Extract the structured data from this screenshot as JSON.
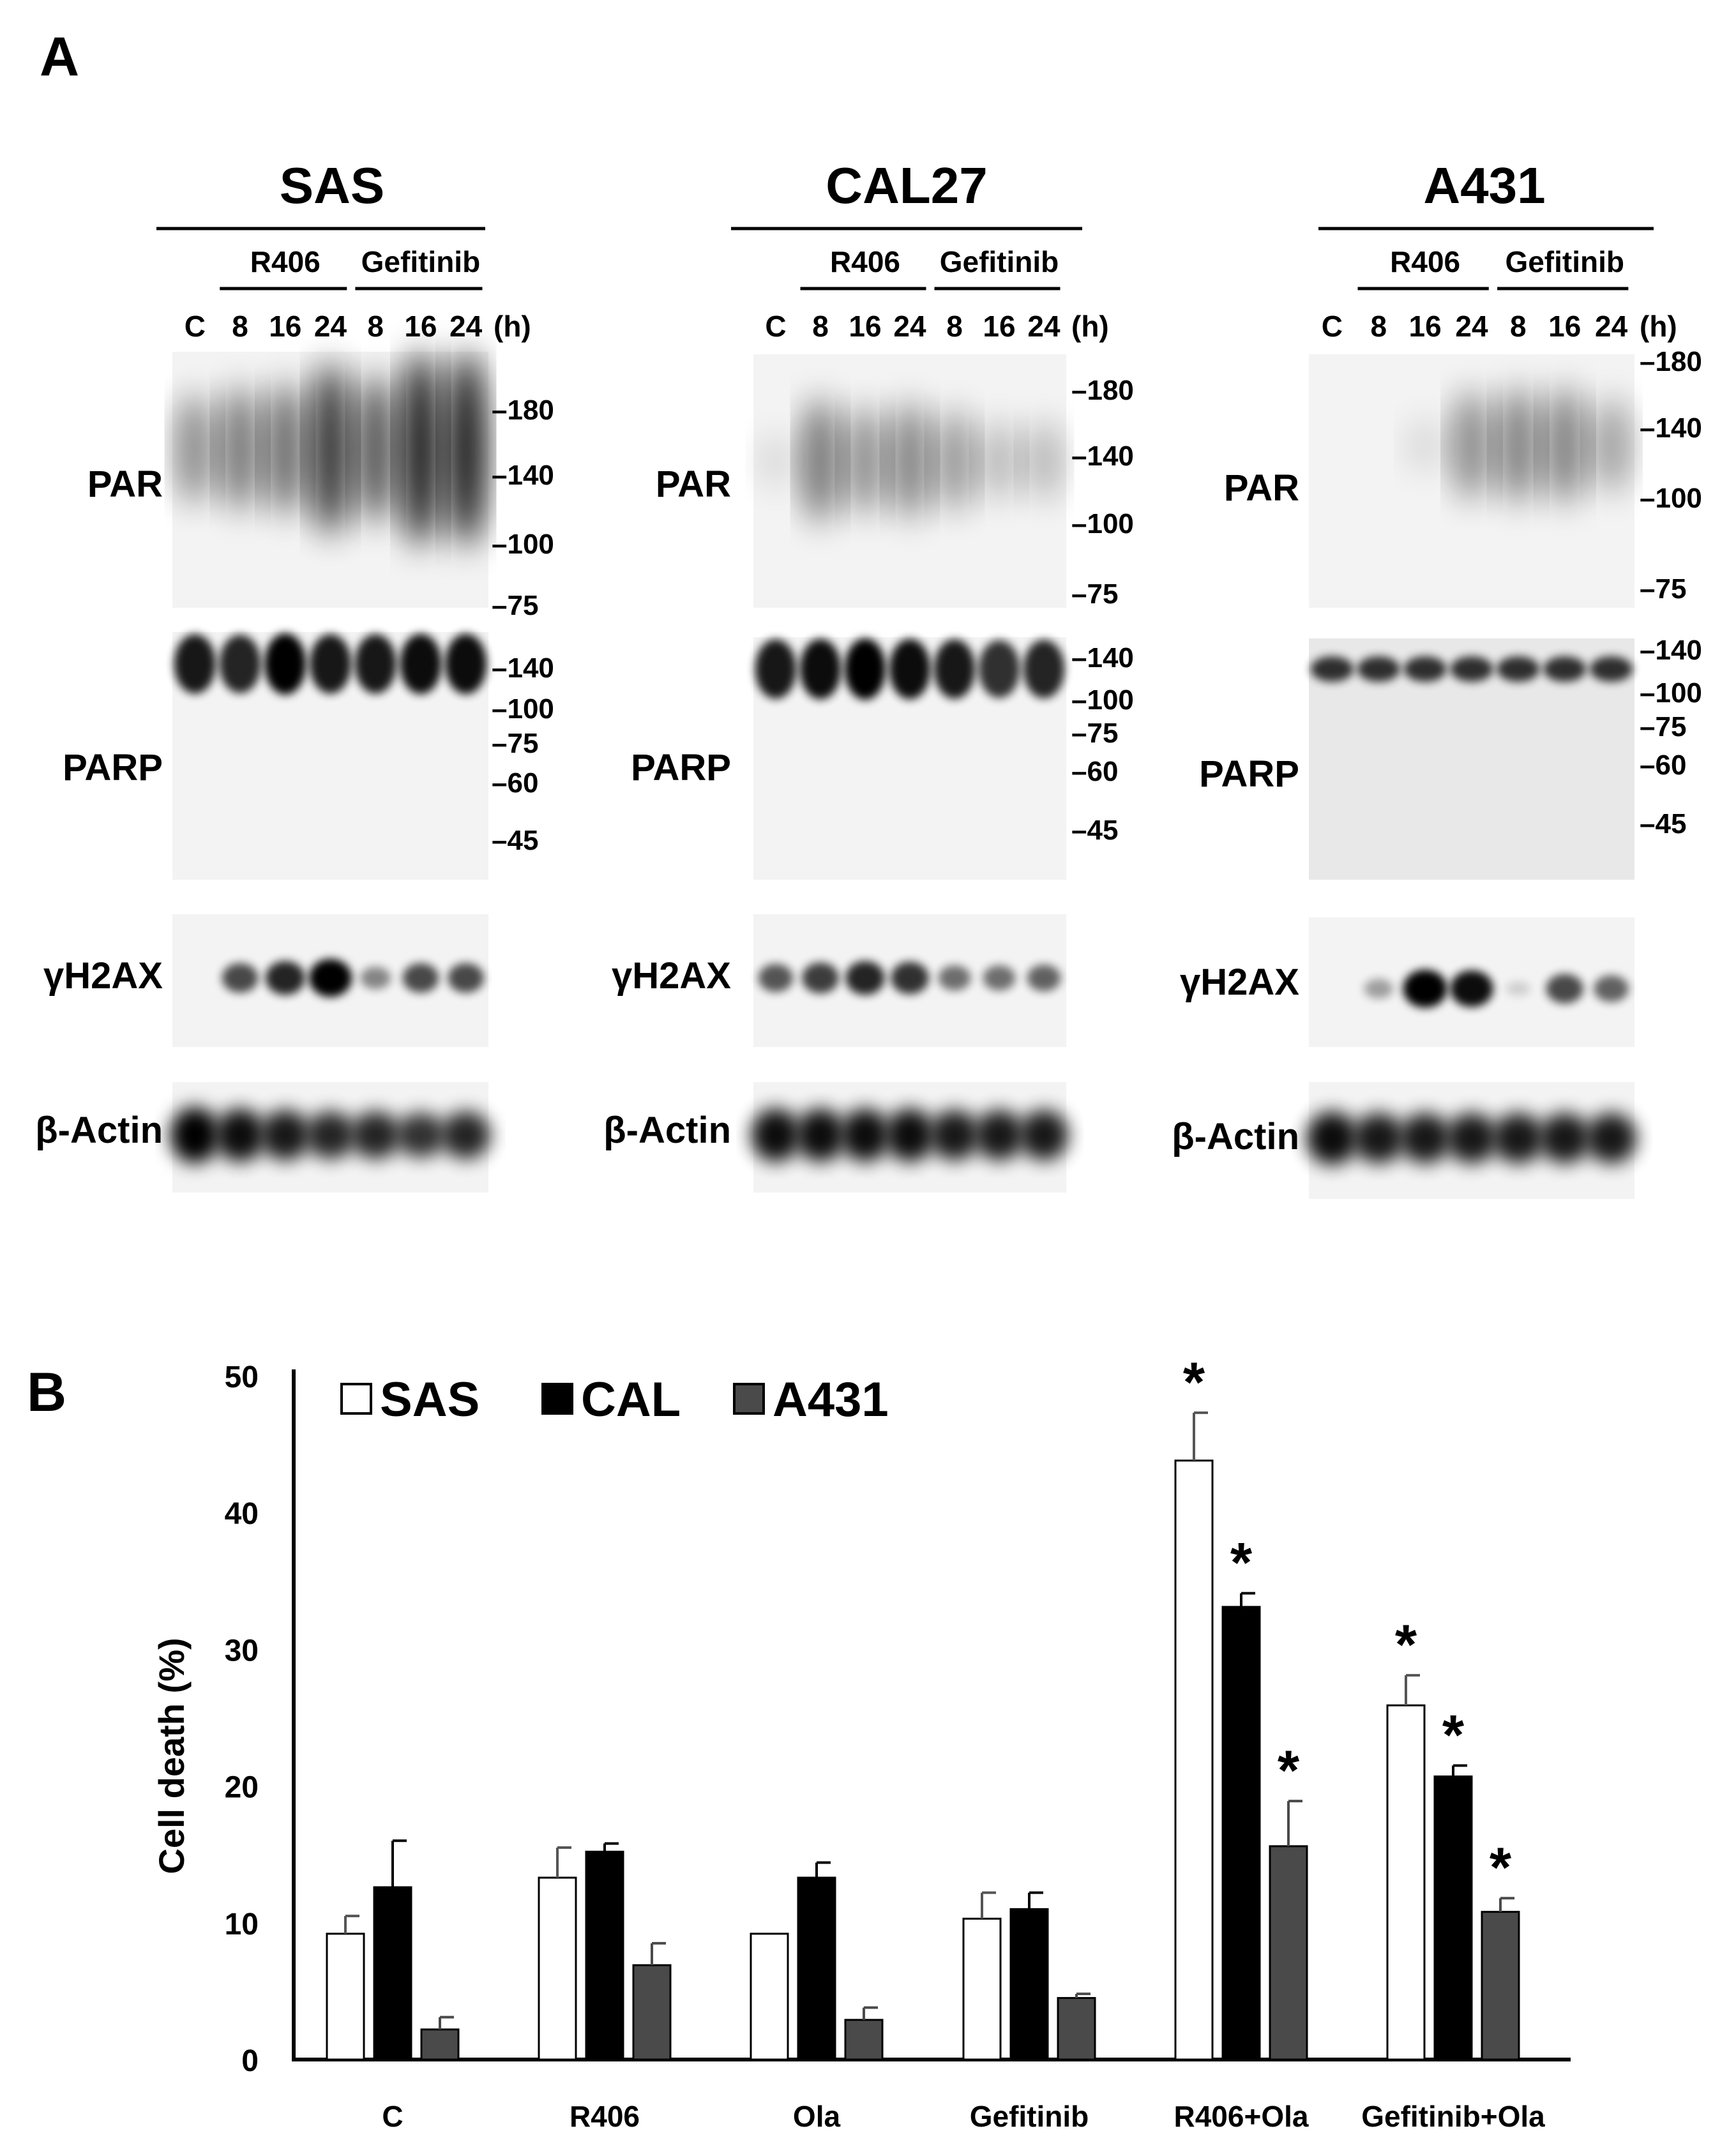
{
  "panel_a": {
    "letter": "A",
    "blots": [
      {
        "cell_line": "SAS",
        "treatment_groups": [
          "R406",
          "Gefitinib"
        ],
        "lanes": [
          "C",
          "8",
          "16",
          "24",
          "8",
          "16",
          "24"
        ],
        "time_unit": "(h)",
        "par_markers": [
          "180",
          "140",
          "100",
          "75"
        ],
        "parp_markers": [
          "140",
          "100",
          "75",
          "60",
          "45"
        ]
      },
      {
        "cell_line": "CAL27",
        "treatment_groups": [
          "R406",
          "Gefitinib"
        ],
        "lanes": [
          "C",
          "8",
          "16",
          "24",
          "8",
          "16",
          "24"
        ],
        "time_unit": "(h)",
        "par_markers": [
          "180",
          "140",
          "100",
          "75"
        ],
        "parp_markers": [
          "140",
          "100",
          "75",
          "60",
          "45"
        ]
      },
      {
        "cell_line": "A431",
        "treatment_groups": [
          "R406",
          "Gefitinib"
        ],
        "lanes": [
          "C",
          "8",
          "16",
          "24",
          "8",
          "16",
          "24"
        ],
        "time_unit": "(h)",
        "par_markers": [
          "180",
          "140",
          "100",
          "75"
        ],
        "parp_markers": [
          "140",
          "100",
          "75",
          "60",
          "45"
        ]
      }
    ],
    "row_labels": [
      "PAR",
      "PARP",
      "γH2AX",
      "β-Actin"
    ]
  },
  "panel_b": {
    "letter": "B"
  },
  "chart_data": {
    "type": "bar",
    "categories": [
      "C",
      "R406",
      "Ola",
      "Gefitinib",
      "R406+Ola",
      "Gefitinib+Ola"
    ],
    "series": [
      {
        "name": "SAS",
        "color": "#ffffff",
        "values": [
          9.2,
          13.3,
          9.2,
          10.3,
          43.8,
          25.9
        ],
        "errors": [
          1.3,
          2.2,
          0.0,
          1.9,
          3.5,
          2.2
        ],
        "significant": [
          false,
          false,
          false,
          false,
          true,
          true
        ]
      },
      {
        "name": "CAL",
        "color": "#000000",
        "values": [
          12.6,
          15.2,
          13.3,
          11.0,
          33.1,
          20.7
        ],
        "errors": [
          3.4,
          0.6,
          1.1,
          1.2,
          1.0,
          0.8
        ],
        "significant": [
          false,
          false,
          false,
          false,
          true,
          true
        ]
      },
      {
        "name": "A431",
        "color": "#4a4a4a",
        "values": [
          2.2,
          6.9,
          2.9,
          4.5,
          15.6,
          10.8
        ],
        "errors": [
          0.9,
          1.6,
          0.9,
          0.3,
          3.3,
          1.0
        ],
        "significant": [
          false,
          false,
          false,
          false,
          true,
          true
        ]
      }
    ],
    "ylabel": "Cell death (%)",
    "xlabel": "",
    "ylim": [
      0,
      50
    ],
    "yticks": [
      0,
      10,
      20,
      30,
      40,
      50
    ],
    "significance_marker": "*",
    "legend_position": "top-left",
    "grid": false
  }
}
